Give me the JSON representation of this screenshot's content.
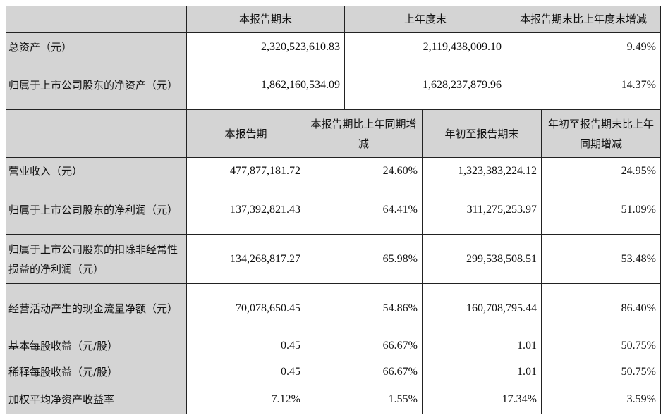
{
  "top_header": {
    "col1": "本报告期末",
    "col2": "上年度末",
    "col3": "本报告期末比上年度末增减"
  },
  "top_rows": [
    {
      "label": "总资产（元）",
      "v1": "2,320,523,610.83",
      "v2": "2,119,438,009.10",
      "v3": "9.49%"
    },
    {
      "label": "归属于上市公司股东的净资产（元）",
      "v1": "1,862,160,534.09",
      "v2": "1,628,237,879.96",
      "v3": "14.37%"
    }
  ],
  "mid_header": {
    "col1": "本报告期",
    "col2": "本报告期比上年同期增减",
    "col3": "年初至报告期末",
    "col4": "年初至报告期末比上年同期增减"
  },
  "rows": [
    {
      "label": "营业收入（元）",
      "v1": "477,877,181.72",
      "v2": "24.60%",
      "v3": "1,323,383,224.12",
      "v4": "24.95%"
    },
    {
      "label": "归属于上市公司股东的净利润（元）",
      "v1": "137,392,821.43",
      "v2": "64.41%",
      "v3": "311,275,253.97",
      "v4": "51.09%"
    },
    {
      "label": "归属于上市公司股东的扣除非经常性损益的净利润（元）",
      "v1": "134,268,817.27",
      "v2": "65.98%",
      "v3": "299,538,508.51",
      "v4": "53.48%"
    },
    {
      "label": "经营活动产生的现金流量净额（元）",
      "v1": "70,078,650.45",
      "v2": "54.86%",
      "v3": "160,708,795.44",
      "v4": "86.40%"
    },
    {
      "label": "基本每股收益（元/股）",
      "v1": "0.45",
      "v2": "66.67%",
      "v3": "1.01",
      "v4": "50.75%"
    },
    {
      "label": "稀释每股收益（元/股）",
      "v1": "0.45",
      "v2": "66.67%",
      "v3": "1.01",
      "v4": "50.75%"
    },
    {
      "label": "加权平均净资产收益率",
      "v1": "7.12%",
      "v2": "1.55%",
      "v3": "17.34%",
      "v4": "3.59%"
    }
  ]
}
